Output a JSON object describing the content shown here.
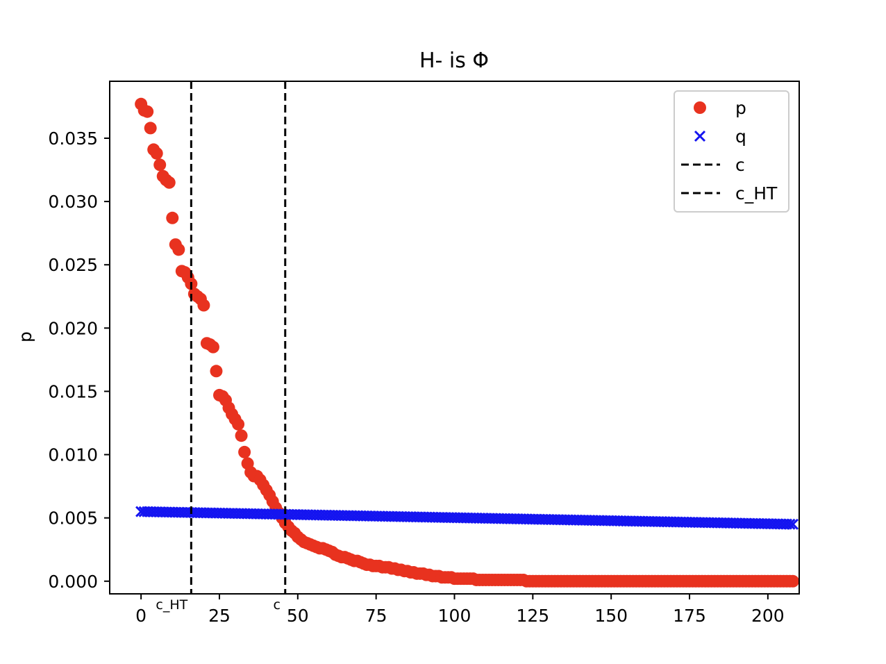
{
  "chart_data": {
    "type": "scatter",
    "title": "H- is Φ",
    "xlabel": "",
    "ylabel": "p",
    "xlim": [
      -10,
      210
    ],
    "ylim": [
      -0.001,
      0.0395
    ],
    "xticks": [
      0,
      25,
      50,
      75,
      100,
      125,
      150,
      175,
      200
    ],
    "xtick_labels": [
      "0",
      "25",
      "50",
      "75",
      "100",
      "125",
      "150",
      "175",
      "200"
    ],
    "yticks": [
      0.0,
      0.005,
      0.01,
      0.015,
      0.02,
      0.025,
      0.03,
      0.035
    ],
    "ytick_labels": [
      "0.000",
      "0.005",
      "0.010",
      "0.015",
      "0.020",
      "0.025",
      "0.030",
      "0.035"
    ],
    "grid": false,
    "legend_position": "top-right",
    "series": [
      {
        "name": "p",
        "marker": "circle",
        "color": "#e8321f",
        "x_start": 0,
        "x_step": 1,
        "values": [
          0.0377,
          0.0372,
          0.0371,
          0.0358,
          0.0341,
          0.0338,
          0.0329,
          0.032,
          0.0317,
          0.0315,
          0.0287,
          0.0266,
          0.0262,
          0.0245,
          0.0244,
          0.024,
          0.0235,
          0.0227,
          0.0225,
          0.0223,
          0.0218,
          0.0188,
          0.0187,
          0.0185,
          0.0166,
          0.0147,
          0.0146,
          0.0143,
          0.0137,
          0.0132,
          0.0128,
          0.0124,
          0.0115,
          0.0102,
          0.0093,
          0.0086,
          0.0083,
          0.0083,
          0.008,
          0.0076,
          0.0072,
          0.0068,
          0.0063,
          0.0058,
          0.0054,
          0.005,
          0.0046,
          0.0043,
          0.004,
          0.0038,
          0.0035,
          0.0033,
          0.0031,
          0.003,
          0.0029,
          0.0028,
          0.0027,
          0.0026,
          0.0026,
          0.0025,
          0.0024,
          0.0023,
          0.0021,
          0.002,
          0.0019,
          0.0019,
          0.0018,
          0.0017,
          0.0016,
          0.0016,
          0.0015,
          0.0014,
          0.0013,
          0.0013,
          0.0012,
          0.0012,
          0.0012,
          0.0011,
          0.0011,
          0.0011,
          0.001,
          0.001,
          0.0009,
          0.0009,
          0.0008,
          0.0008,
          0.0007,
          0.0007,
          0.0006,
          0.0006,
          0.0006,
          0.0005,
          0.0005,
          0.0004,
          0.0004,
          0.0004,
          0.0003,
          0.0003,
          0.0003,
          0.0003,
          0.0002,
          0.0002,
          0.0002,
          0.0002,
          0.0002,
          0.0002,
          0.0002,
          0.0001,
          0.0001,
          0.0001,
          0.0001,
          0.0001,
          0.0001,
          0.0001,
          0.0001,
          0.0001,
          0.0001,
          0.0001,
          0.0001,
          0.0001,
          0.0001,
          0.0001,
          0.0001,
          0.0,
          0.0,
          0.0,
          0.0,
          0.0,
          0.0,
          0.0,
          0.0,
          0.0,
          0.0,
          0.0,
          0.0,
          0.0,
          0.0,
          0.0,
          0.0,
          0.0,
          0.0,
          0.0,
          0.0,
          0.0,
          0.0,
          0.0,
          0.0,
          0.0,
          0.0,
          0.0,
          0.0,
          0.0,
          0.0,
          0.0,
          0.0,
          0.0,
          0.0,
          0.0,
          0.0,
          0.0,
          0.0,
          0.0,
          0.0,
          0.0,
          0.0,
          0.0,
          0.0,
          0.0,
          0.0,
          0.0,
          0.0,
          0.0,
          0.0,
          0.0,
          0.0,
          0.0,
          0.0,
          0.0,
          0.0,
          0.0,
          0.0,
          0.0,
          0.0,
          0.0,
          0.0,
          0.0,
          0.0,
          0.0,
          0.0,
          0.0,
          0.0,
          0.0,
          0.0,
          0.0,
          0.0,
          0.0,
          0.0,
          0.0,
          0.0,
          0.0,
          0.0,
          0.0,
          0.0,
          0.0,
          0.0,
          0.0,
          0.0,
          0.0,
          0.0
        ]
      },
      {
        "name": "q",
        "marker": "x",
        "color": "#1414f0",
        "x_start": 0,
        "x_step": 1,
        "value_start": 0.0055,
        "value_end": 0.0045
      }
    ],
    "vlines": [
      {
        "name": "c",
        "x": 46,
        "style": "dashed",
        "color": "#000000",
        "axis_label": "c"
      },
      {
        "name": "c_HT",
        "x": 16,
        "style": "dashed",
        "color": "#000000",
        "axis_label": "c_HT"
      }
    ]
  }
}
